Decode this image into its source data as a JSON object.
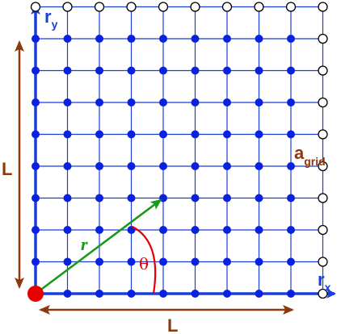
{
  "diagram": {
    "grid": {
      "columns": 9,
      "rows": 9,
      "open_marker_edges": [
        "top",
        "right"
      ]
    },
    "axes": {
      "x_label": "r",
      "x_subscript": "x",
      "y_label": "r",
      "y_subscript": "y"
    },
    "dimensions": {
      "width_label": "L",
      "height_label": "L"
    },
    "spacing_label": {
      "main": "a",
      "subscript": "grid"
    },
    "vector": {
      "label": "r",
      "angle_label": "θ",
      "tip_cell": [
        4,
        3
      ]
    },
    "colors": {
      "grid_lines": "#1a3fd8",
      "axes": "#1a3fd8",
      "filled_points": "#0a22e0",
      "open_points": "#000000",
      "origin_point": "#e60000",
      "vector": "#1a9a1a",
      "angle_arc": "#e60000",
      "dimension_arrows": "#8b3a10"
    }
  }
}
